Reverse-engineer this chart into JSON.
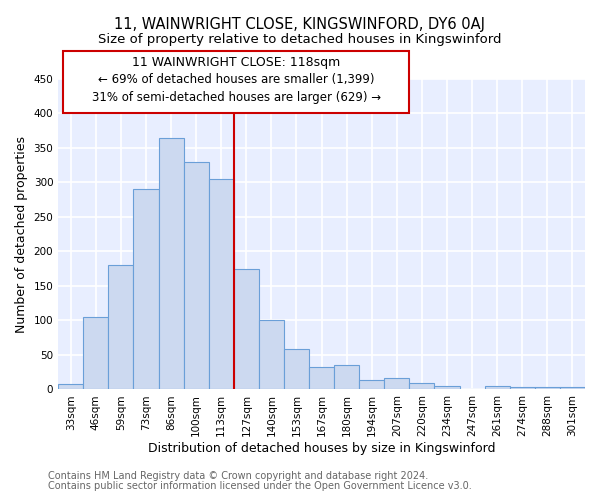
{
  "title_line1": "11, WAINWRIGHT CLOSE, KINGSWINFORD, DY6 0AJ",
  "title_line2": "Size of property relative to detached houses in Kingswinford",
  "xlabel": "Distribution of detached houses by size in Kingswinford",
  "ylabel": "Number of detached properties",
  "categories": [
    "33sqm",
    "46sqm",
    "59sqm",
    "73sqm",
    "86sqm",
    "100sqm",
    "113sqm",
    "127sqm",
    "140sqm",
    "153sqm",
    "167sqm",
    "180sqm",
    "194sqm",
    "207sqm",
    "220sqm",
    "234sqm",
    "247sqm",
    "261sqm",
    "274sqm",
    "288sqm",
    "301sqm"
  ],
  "values": [
    8,
    105,
    180,
    290,
    365,
    330,
    305,
    175,
    100,
    58,
    33,
    36,
    13,
    17,
    9,
    5,
    0,
    5,
    4,
    4,
    4
  ],
  "bar_color": "#ccd9f0",
  "bar_edge_color": "#6a9fd8",
  "vline_x_idx": 6,
  "vline_color": "#cc0000",
  "annotation_title": "11 WAINWRIGHT CLOSE: 118sqm",
  "annotation_line1": "← 69% of detached houses are smaller (1,399)",
  "annotation_line2": "31% of semi-detached houses are larger (629) →",
  "annotation_box_color": "#ffffff",
  "annotation_box_edge_color": "#cc0000",
  "ylim": [
    0,
    450
  ],
  "yticks": [
    0,
    50,
    100,
    150,
    200,
    250,
    300,
    350,
    400,
    450
  ],
  "footer_line1": "Contains HM Land Registry data © Crown copyright and database right 2024.",
  "footer_line2": "Contains public sector information licensed under the Open Government Licence v3.0.",
  "fig_background_color": "#ffffff",
  "plot_background_color": "#e8eeff",
  "grid_color": "#ffffff",
  "title_fontsize": 10.5,
  "subtitle_fontsize": 9.5,
  "axis_label_fontsize": 9,
  "tick_fontsize": 7.5,
  "annotation_title_fontsize": 9,
  "annotation_text_fontsize": 8.5,
  "footer_fontsize": 7
}
